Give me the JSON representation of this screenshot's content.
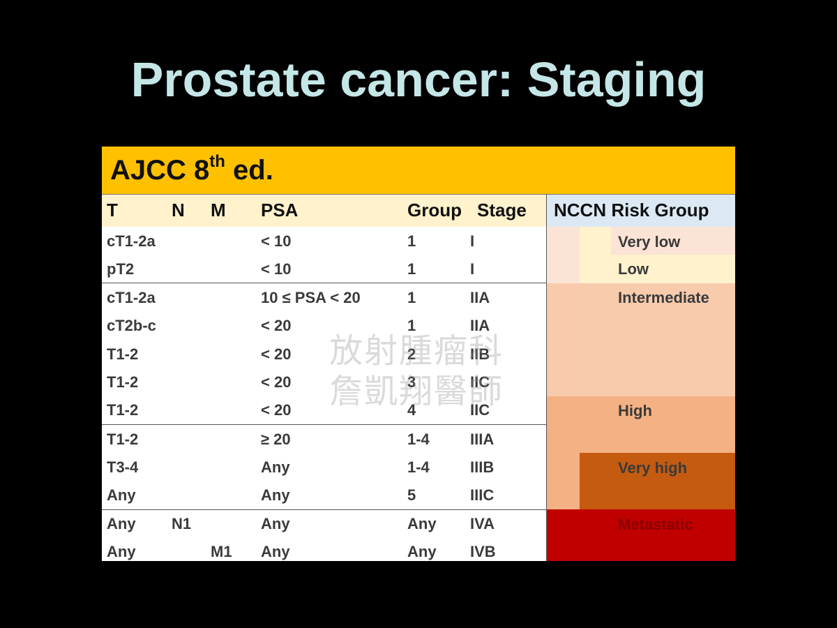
{
  "title": "Prostate cancer: Staging",
  "table": {
    "caption_main": "AJCC 8",
    "caption_sup": "th",
    "caption_end": " ed.",
    "headers": {
      "t": "T",
      "n": "N",
      "m": "M",
      "psa": "PSA",
      "group": "Group",
      "stage": "Stage",
      "nccn": "NCCN Risk Group"
    },
    "rows": [
      {
        "t": "cT1-2a",
        "n": "",
        "m": "",
        "psa": "< 10",
        "group": "1",
        "stage": "I"
      },
      {
        "t": "pT2",
        "n": "",
        "m": "",
        "psa": "< 10",
        "group": "1",
        "stage": "I"
      },
      {
        "t": "cT1-2a",
        "n": "",
        "m": "",
        "psa": "10 ≤ PSA < 20",
        "group": "1",
        "stage": "IIA"
      },
      {
        "t": "cT2b-c",
        "n": "",
        "m": "",
        "psa": "< 20",
        "group": "1",
        "stage": "IIA"
      },
      {
        "t": "T1-2",
        "n": "",
        "m": "",
        "psa": "< 20",
        "group": "2",
        "stage": "IIB"
      },
      {
        "t": "T1-2",
        "n": "",
        "m": "",
        "psa": "< 20",
        "group": "3",
        "stage": "IIC"
      },
      {
        "t": "T1-2",
        "n": "",
        "m": "",
        "psa": "< 20",
        "group": "4",
        "stage": "IIC"
      },
      {
        "t": "T1-2",
        "n": "",
        "m": "",
        "psa": "≥ 20",
        "group": "1-4",
        "stage": "IIIA"
      },
      {
        "t": "T3-4",
        "n": "",
        "m": "",
        "psa": "Any",
        "group": "1-4",
        "stage": "IIIB"
      },
      {
        "t": "Any",
        "n": "",
        "m": "",
        "psa": "Any",
        "group": "5",
        "stage": "IIIC"
      },
      {
        "t": "Any",
        "n": "N1",
        "m": "",
        "psa": "Any",
        "group": "Any",
        "stage": "IVA"
      },
      {
        "t": "Any",
        "n": "",
        "m": "M1",
        "psa": "Any",
        "group": "Any",
        "stage": "IVB"
      }
    ],
    "risk": {
      "very_low": "Very low",
      "low": "Low",
      "intermediate": "Intermediate",
      "high": "High",
      "very_high": "Very high",
      "metastatic": "Metastatic"
    }
  },
  "watermark": {
    "line1": "放射腫瘤科",
    "line2": "詹凱翔醫師"
  },
  "colors": {
    "background": "#000000",
    "title": "#c5e6e6",
    "header": "#ffc000",
    "col_header": "#fff2cc",
    "nccn_header": "#dce9f5",
    "very_low": "#fbe4d5",
    "low": "#fff2cc",
    "intermediate": "#f8cbad",
    "high": "#f4b183",
    "very_high": "#c55a11",
    "metastatic": "#c00000"
  }
}
